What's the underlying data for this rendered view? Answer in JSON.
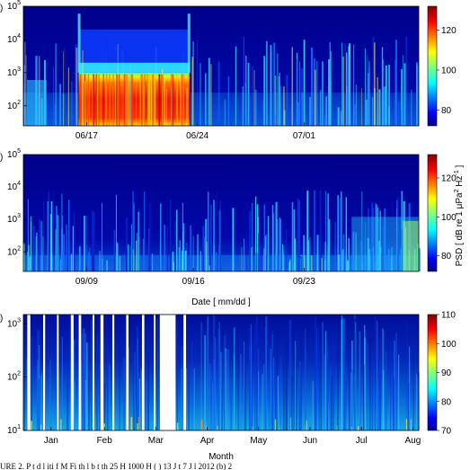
{
  "chart_data": [
    {
      "type": "heatmap",
      "panel": "a",
      "panel_label": ")",
      "x_ticks": [
        "06/17",
        "06/24",
        "07/01"
      ],
      "y_scale": "log",
      "ylim": [
        25,
        100000
      ],
      "y_ticks": [
        {
          "base": "10",
          "exp": "2"
        },
        {
          "base": "10",
          "exp": "3"
        },
        {
          "base": "10",
          "exp": "4"
        },
        {
          "base": "10",
          "exp": "5"
        }
      ],
      "colorbar": {
        "ticks": [
          "80",
          "100",
          "120"
        ],
        "range": [
          72,
          132
        ]
      },
      "high_activity_period": [
        "06/17",
        "06/24"
      ]
    },
    {
      "type": "heatmap",
      "panel": "b",
      "panel_label": ")",
      "x_ticks": [
        "09/09",
        "09/16",
        "09/23"
      ],
      "xlabel": "Date [ mm/dd ]",
      "y_scale": "log",
      "ylim": [
        25,
        100000
      ],
      "y_ticks": [
        {
          "base": "10",
          "exp": "2"
        },
        {
          "base": "10",
          "exp": "3"
        },
        {
          "base": "10",
          "exp": "4"
        },
        {
          "base": "10",
          "exp": "5"
        }
      ],
      "colorbar": {
        "ticks": [
          "80",
          "100",
          "120"
        ],
        "range": [
          72,
          132
        ],
        "label": "PSD [ dB re 1 μPa² Hz⁻¹ ]"
      }
    },
    {
      "type": "heatmap",
      "panel": "c",
      "panel_label": ")",
      "x_ticks": [
        "Jan",
        "Feb",
        "Mar",
        "Apr",
        "May",
        "Jun",
        "Jul",
        "Aug"
      ],
      "xlabel": "Month",
      "y_scale": "log",
      "ylim": [
        10,
        1500
      ],
      "y_ticks": [
        {
          "base": "10",
          "exp": "1"
        },
        {
          "base": "10",
          "exp": "2"
        },
        {
          "base": "10",
          "exp": "3"
        }
      ],
      "colorbar": {
        "ticks": [
          "70",
          "80",
          "90",
          "100",
          "110"
        ],
        "range": [
          70,
          110
        ]
      },
      "data_gap": [
        "Mar",
        "Apr"
      ]
    }
  ],
  "caption": "URE 2. P                     t d l  iti   f M     Fi th l  b       t        th         25 H  1000 H  ( ) 13 J       t  7 J l  2012 (b) 2"
}
